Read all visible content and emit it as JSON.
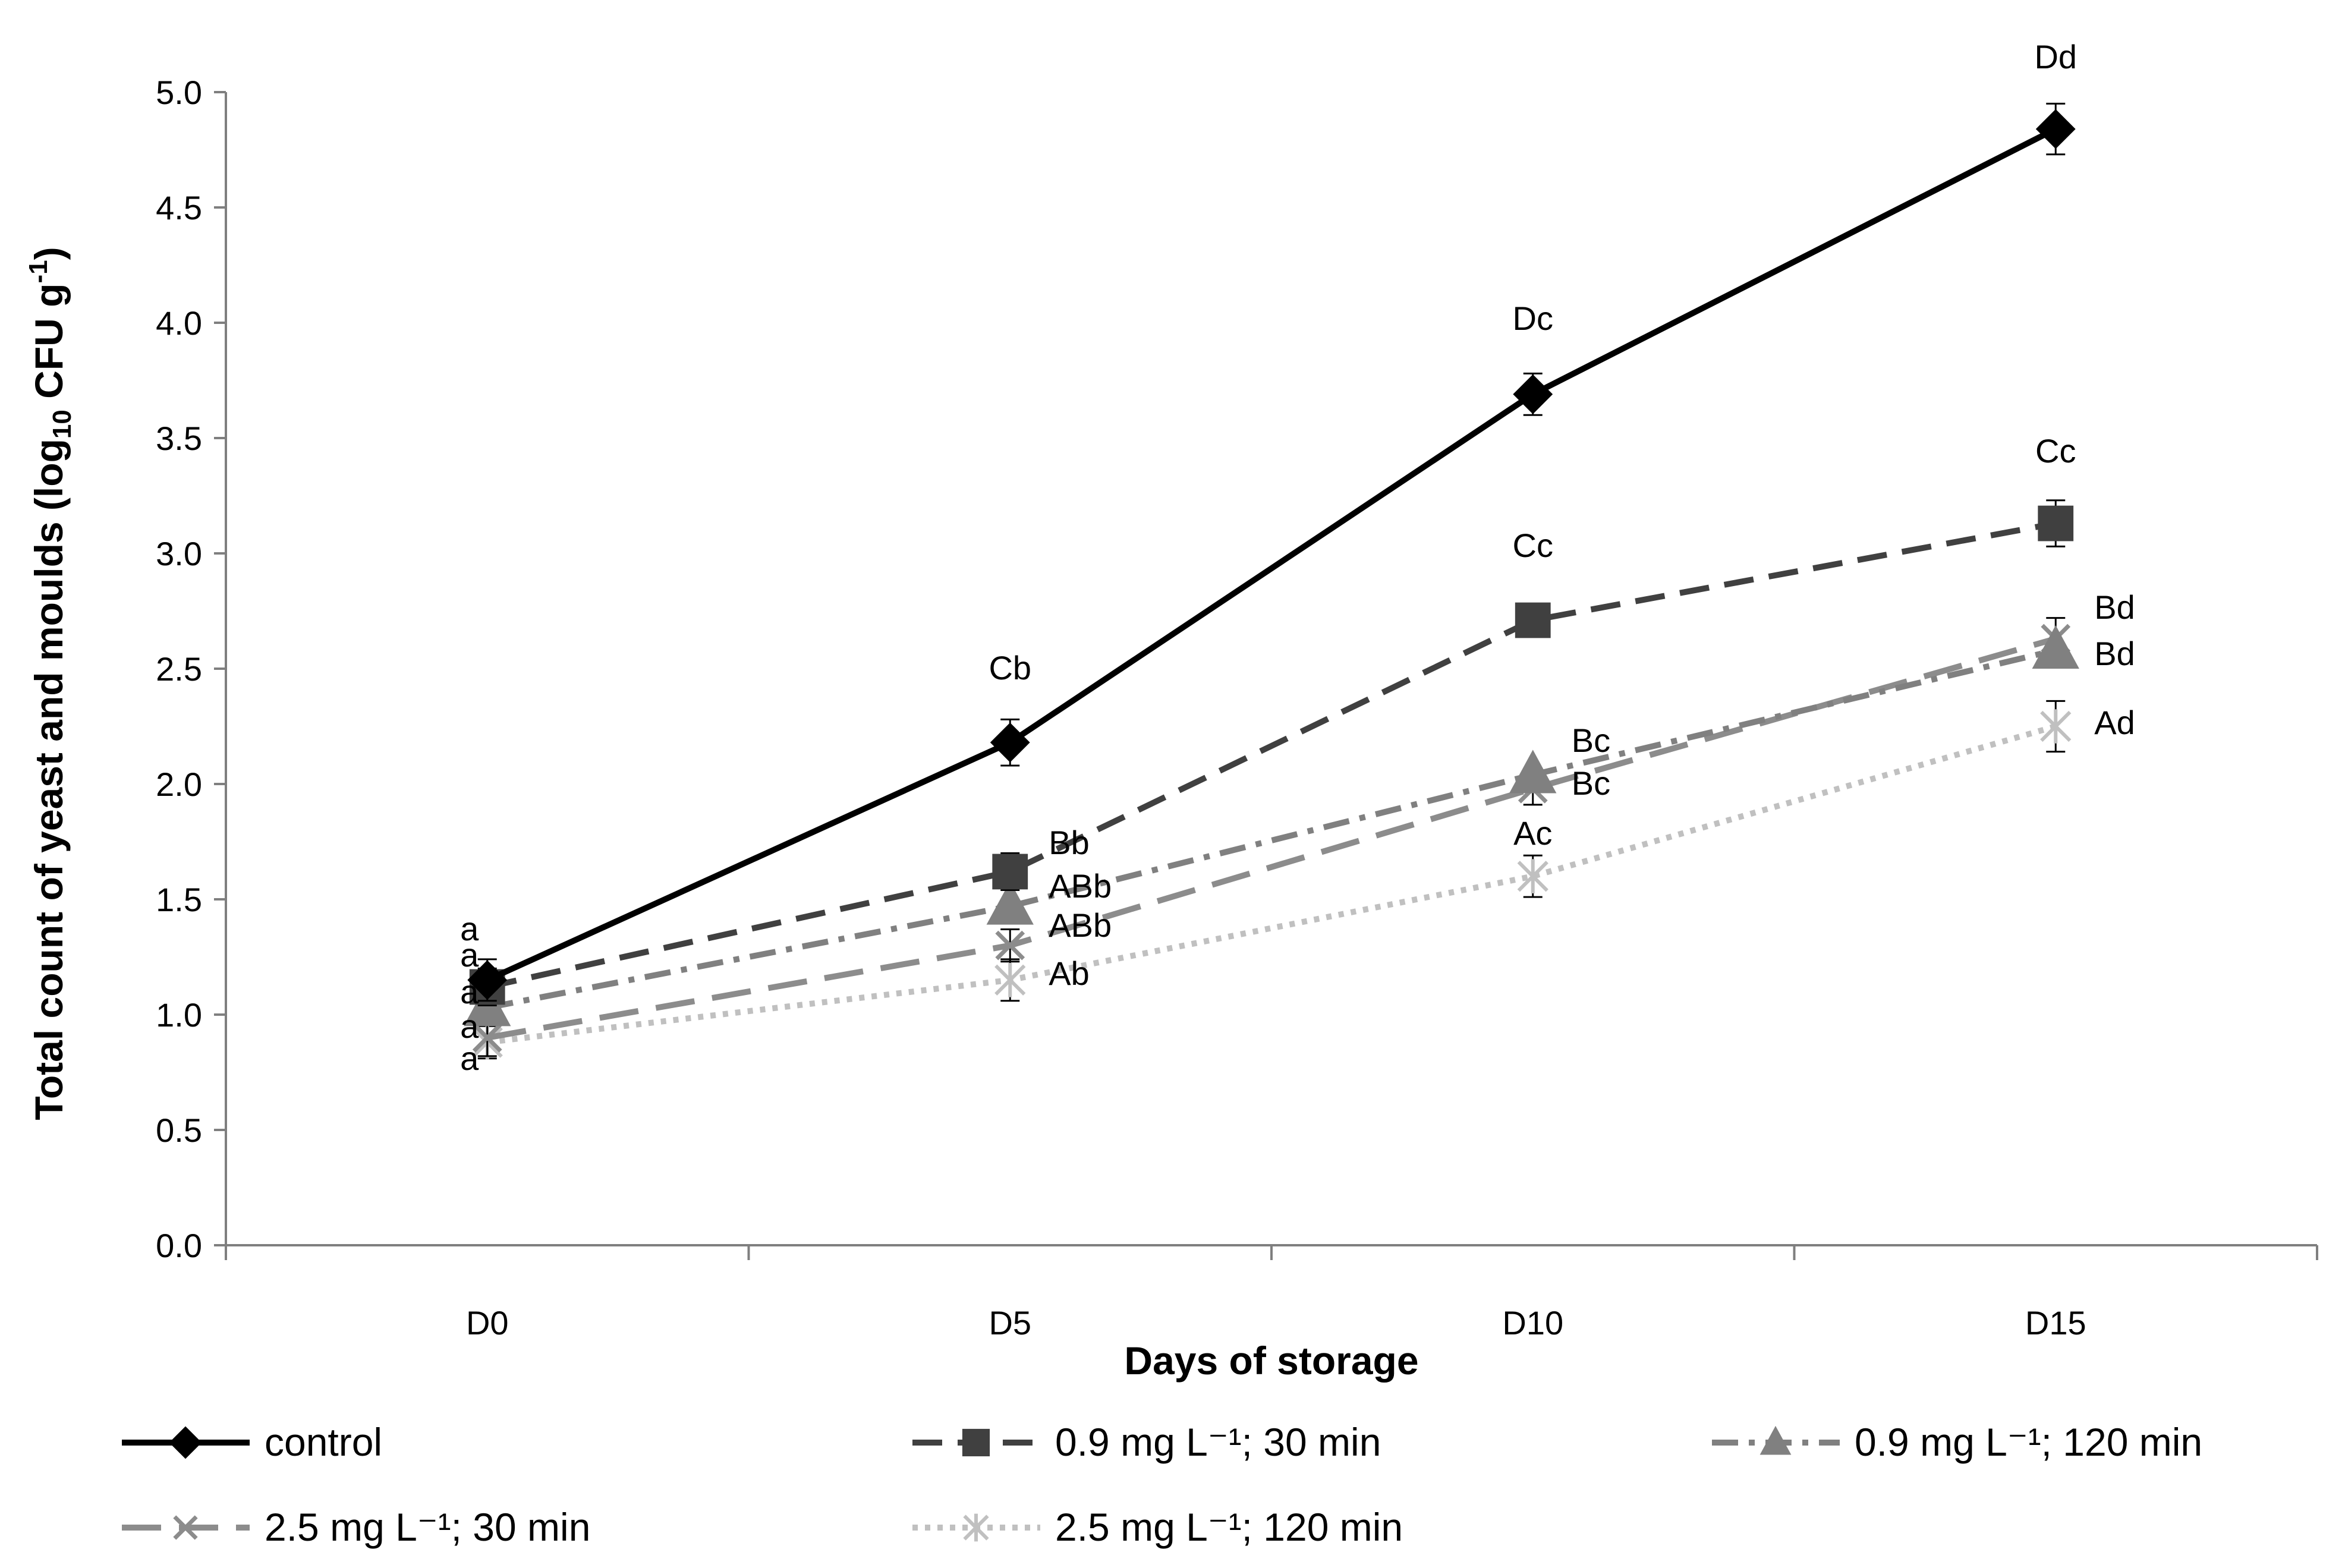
{
  "chart_data": {
    "type": "line",
    "xlabel": "Days of storage",
    "ylabel": {
      "main": "Total count of yeast and moulds (log",
      "sub": "10",
      "unit": " CFU g",
      "sup": "-1",
      "close": ")"
    },
    "categories": [
      "D0",
      "D5",
      "D10",
      "D15"
    ],
    "ylim": [
      0,
      5
    ],
    "yticks": [
      "0.0",
      "0.5",
      "1.0",
      "1.5",
      "2.0",
      "2.5",
      "3.0",
      "3.5",
      "4.0",
      "4.5",
      "5.0"
    ],
    "grid": false,
    "legend_position": "bottom",
    "series": [
      {
        "name": "control",
        "values": [
          1.15,
          2.18,
          3.69,
          4.84
        ],
        "errors": [
          0.09,
          0.1,
          0.09,
          0.11
        ],
        "labels": [
          "a",
          "Cb",
          "Dc",
          "Dd"
        ],
        "color": "#000000",
        "marker": "diamond",
        "line_style": "solid"
      },
      {
        "name": "0.9 mg L⁻¹; 30 min",
        "values": [
          1.12,
          1.62,
          2.71,
          3.13
        ],
        "errors": [
          0.08,
          0.08,
          0.0,
          0.1
        ],
        "labels": [
          "a",
          "Bb",
          "Cc",
          "Cc"
        ],
        "color": "#404040",
        "marker": "square",
        "line_style": "dash"
      },
      {
        "name": "0.9 mg L⁻¹; 120 min",
        "values": [
          1.03,
          1.47,
          2.04,
          2.58
        ],
        "errors": [
          0.0,
          0.0,
          0.0,
          0.0
        ],
        "labels": [
          "a",
          "ABb",
          "Bc",
          "Bd"
        ],
        "color": "#808080",
        "marker": "triangle",
        "line_style": "dash-dot"
      },
      {
        "name": "2.5 mg  L⁻¹; 30 min",
        "values": [
          0.9,
          1.3,
          1.98,
          2.63
        ],
        "errors": [
          0.08,
          0.07,
          0.07,
          0.09
        ],
        "labels": [
          "a",
          "ABb",
          "Bc",
          "Bd"
        ],
        "color": "#8c8c8c",
        "marker": "x",
        "line_style": "long-dash"
      },
      {
        "name": "2.5 mg L⁻¹; 120 min",
        "values": [
          0.88,
          1.15,
          1.6,
          2.25
        ],
        "errors": [
          0.07,
          0.09,
          0.09,
          0.11
        ],
        "labels": [
          "a",
          "Ab",
          "Ac",
          "Ad"
        ],
        "color": "#c0c0c0",
        "marker": "asterisk",
        "line_style": "dot"
      }
    ]
  }
}
